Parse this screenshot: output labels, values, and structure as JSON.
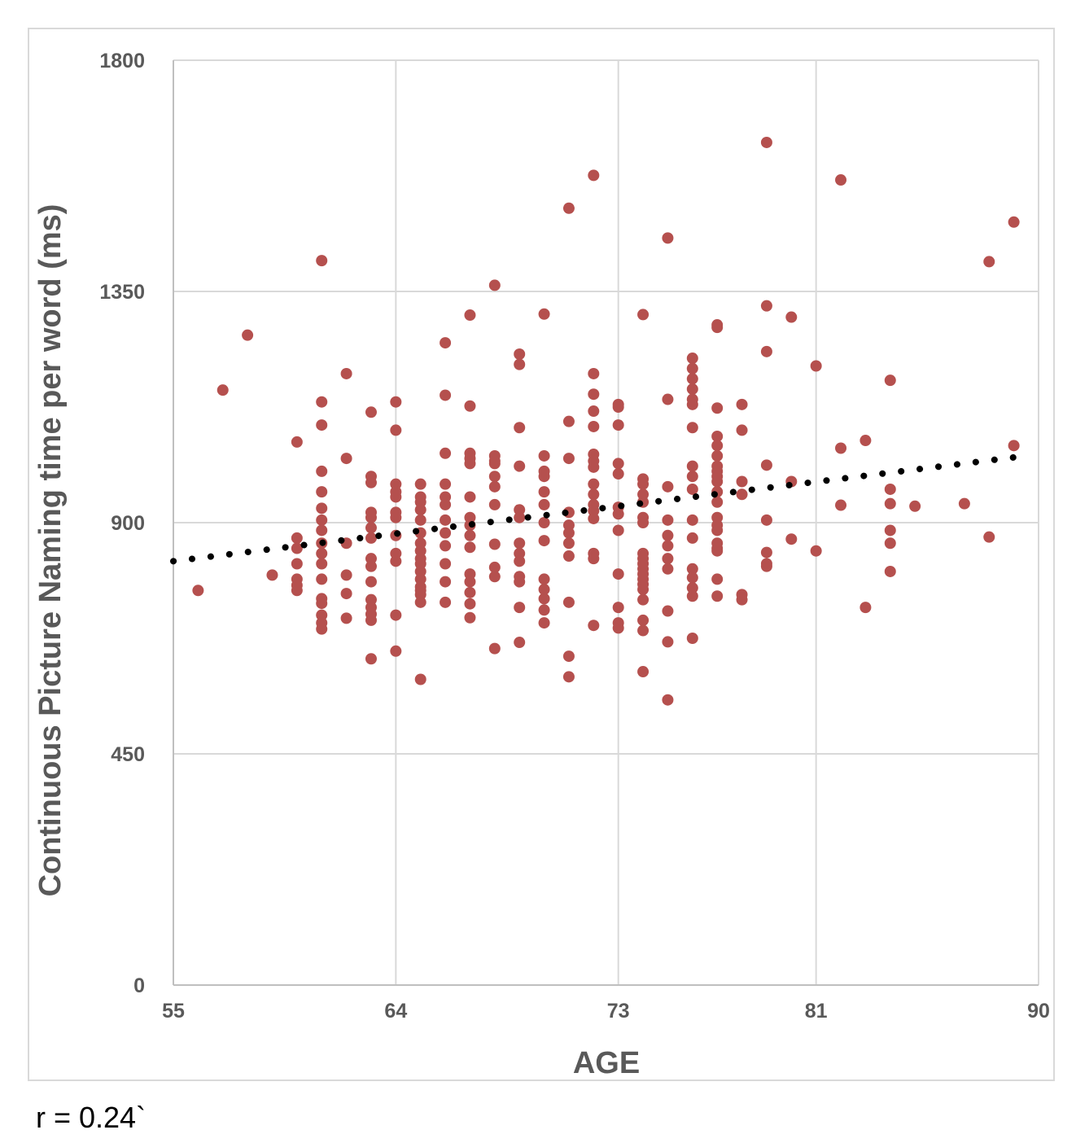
{
  "chart_data": {
    "type": "scatter",
    "title": "",
    "xlabel": "AGE",
    "ylabel": "Continuous Picture Naming time per word (ms)",
    "xlim": [
      55,
      90
    ],
    "ylim": [
      0,
      1800
    ],
    "x_ticks": [
      55,
      64,
      73,
      81,
      90
    ],
    "y_ticks": [
      0,
      450,
      900,
      1350,
      1800
    ],
    "x_tick_labels": [
      "55",
      "64",
      "73",
      "81",
      "90"
    ],
    "y_tick_labels": [
      "0",
      "450",
      "900",
      "1350",
      "1800"
    ],
    "grid": true,
    "legend": "none",
    "point_color": "#b5504e",
    "trendline": {
      "style": "dotted",
      "color": "#000000",
      "start": [
        55,
        825
      ],
      "end": [
        89.5,
        1030
      ]
    },
    "points": [
      [
        56,
        768
      ],
      [
        57,
        1158
      ],
      [
        58,
        1265
      ],
      [
        59,
        798
      ],
      [
        60,
        1057
      ],
      [
        60,
        870
      ],
      [
        60,
        850
      ],
      [
        60,
        820
      ],
      [
        60,
        790
      ],
      [
        60,
        778
      ],
      [
        60,
        768
      ],
      [
        61,
        1410
      ],
      [
        61,
        1135
      ],
      [
        61,
        1090
      ],
      [
        61,
        1000
      ],
      [
        61,
        960
      ],
      [
        61,
        928
      ],
      [
        61,
        905
      ],
      [
        61,
        885
      ],
      [
        61,
        860
      ],
      [
        61,
        840
      ],
      [
        61,
        820
      ],
      [
        61,
        790
      ],
      [
        61,
        752
      ],
      [
        61,
        743
      ],
      [
        61,
        720
      ],
      [
        61,
        705
      ],
      [
        61,
        693
      ],
      [
        62,
        1190
      ],
      [
        62,
        1025
      ],
      [
        62,
        860
      ],
      [
        62,
        798
      ],
      [
        62,
        762
      ],
      [
        62,
        714
      ],
      [
        63,
        1115
      ],
      [
        63,
        990
      ],
      [
        63,
        978
      ],
      [
        63,
        920
      ],
      [
        63,
        910
      ],
      [
        63,
        890
      ],
      [
        63,
        870
      ],
      [
        63,
        830
      ],
      [
        63,
        815
      ],
      [
        63,
        785
      ],
      [
        63,
        750
      ],
      [
        63,
        735
      ],
      [
        63,
        722
      ],
      [
        63,
        710
      ],
      [
        63,
        635
      ],
      [
        64,
        1135
      ],
      [
        64,
        1080
      ],
      [
        64,
        975
      ],
      [
        64,
        960
      ],
      [
        64,
        950
      ],
      [
        64,
        920
      ],
      [
        64,
        910
      ],
      [
        64,
        875
      ],
      [
        64,
        840
      ],
      [
        64,
        825
      ],
      [
        64,
        720
      ],
      [
        64,
        650
      ],
      [
        65,
        975
      ],
      [
        65,
        950
      ],
      [
        65,
        940
      ],
      [
        65,
        925
      ],
      [
        65,
        905
      ],
      [
        65,
        880
      ],
      [
        65,
        860
      ],
      [
        65,
        845
      ],
      [
        65,
        830
      ],
      [
        65,
        820
      ],
      [
        65,
        805
      ],
      [
        65,
        790
      ],
      [
        65,
        775
      ],
      [
        65,
        768
      ],
      [
        65,
        760
      ],
      [
        65,
        745
      ],
      [
        65,
        595
      ],
      [
        66,
        1250
      ],
      [
        66,
        1148
      ],
      [
        66,
        1035
      ],
      [
        66,
        975
      ],
      [
        66,
        950
      ],
      [
        66,
        935
      ],
      [
        66,
        905
      ],
      [
        66,
        880
      ],
      [
        66,
        855
      ],
      [
        66,
        820
      ],
      [
        66,
        785
      ],
      [
        66,
        745
      ],
      [
        67,
        1304
      ],
      [
        67,
        1127
      ],
      [
        67,
        1015
      ],
      [
        67,
        1035
      ],
      [
        67,
        1025
      ],
      [
        67,
        950
      ],
      [
        67,
        910
      ],
      [
        67,
        895
      ],
      [
        67,
        875
      ],
      [
        67,
        852
      ],
      [
        67,
        800
      ],
      [
        67,
        785
      ],
      [
        67,
        764
      ],
      [
        67,
        742
      ],
      [
        67,
        715
      ],
      [
        68,
        1362
      ],
      [
        68,
        1030
      ],
      [
        68,
        1020
      ],
      [
        68,
        1015
      ],
      [
        68,
        990
      ],
      [
        68,
        970
      ],
      [
        68,
        935
      ],
      [
        68,
        858
      ],
      [
        68,
        813
      ],
      [
        68,
        795
      ],
      [
        68,
        655
      ],
      [
        69,
        1228
      ],
      [
        69,
        1208
      ],
      [
        69,
        1085
      ],
      [
        69,
        1010
      ],
      [
        69,
        925
      ],
      [
        69,
        910
      ],
      [
        69,
        860
      ],
      [
        69,
        840
      ],
      [
        69,
        825
      ],
      [
        69,
        795
      ],
      [
        69,
        785
      ],
      [
        69,
        735
      ],
      [
        69,
        667
      ],
      [
        70,
        1306
      ],
      [
        70,
        1030
      ],
      [
        70,
        1000
      ],
      [
        70,
        990
      ],
      [
        70,
        960
      ],
      [
        70,
        935
      ],
      [
        70,
        900
      ],
      [
        70,
        865
      ],
      [
        70,
        790
      ],
      [
        70,
        770
      ],
      [
        70,
        752
      ],
      [
        70,
        730
      ],
      [
        70,
        705
      ],
      [
        71,
        1512
      ],
      [
        71,
        1097
      ],
      [
        71,
        1025
      ],
      [
        71,
        920
      ],
      [
        71,
        895
      ],
      [
        71,
        880
      ],
      [
        71,
        860
      ],
      [
        71,
        835
      ],
      [
        71,
        745
      ],
      [
        71,
        640
      ],
      [
        71,
        600
      ],
      [
        72,
        1576
      ],
      [
        72,
        1190
      ],
      [
        72,
        1150
      ],
      [
        72,
        1117
      ],
      [
        72,
        1087
      ],
      [
        72,
        1033
      ],
      [
        72,
        1020
      ],
      [
        72,
        1008
      ],
      [
        72,
        975
      ],
      [
        72,
        955
      ],
      [
        72,
        935
      ],
      [
        72,
        923
      ],
      [
        72,
        908
      ],
      [
        72,
        840
      ],
      [
        72,
        830
      ],
      [
        72,
        700
      ],
      [
        73,
        1130
      ],
      [
        73,
        1125
      ],
      [
        73,
        1090
      ],
      [
        73,
        1015
      ],
      [
        73,
        995
      ],
      [
        73,
        930
      ],
      [
        73,
        917
      ],
      [
        73,
        885
      ],
      [
        73,
        800
      ],
      [
        73,
        735
      ],
      [
        73,
        705
      ],
      [
        73,
        695
      ],
      [
        74,
        1305
      ],
      [
        74,
        985
      ],
      [
        74,
        975
      ],
      [
        74,
        955
      ],
      [
        74,
        940
      ],
      [
        74,
        910
      ],
      [
        74,
        900
      ],
      [
        74,
        840
      ],
      [
        74,
        830
      ],
      [
        74,
        820
      ],
      [
        74,
        810
      ],
      [
        74,
        800
      ],
      [
        74,
        790
      ],
      [
        74,
        780
      ],
      [
        74,
        770
      ],
      [
        74,
        750
      ],
      [
        74,
        710
      ],
      [
        74,
        690
      ],
      [
        74,
        610
      ],
      [
        75,
        1454
      ],
      [
        75,
        1140
      ],
      [
        75,
        970
      ],
      [
        75,
        905
      ],
      [
        75,
        875
      ],
      [
        75,
        855
      ],
      [
        75,
        830
      ],
      [
        75,
        810
      ],
      [
        75,
        728
      ],
      [
        75,
        668
      ],
      [
        75,
        555
      ],
      [
        76,
        1220
      ],
      [
        76,
        1200
      ],
      [
        76,
        1180
      ],
      [
        76,
        1160
      ],
      [
        76,
        1140
      ],
      [
        76,
        1130
      ],
      [
        76,
        1085
      ],
      [
        76,
        1010
      ],
      [
        76,
        990
      ],
      [
        76,
        965
      ],
      [
        76,
        905
      ],
      [
        76,
        870
      ],
      [
        76,
        810
      ],
      [
        76,
        793
      ],
      [
        76,
        773
      ],
      [
        76,
        757
      ],
      [
        76,
        675
      ],
      [
        77,
        1285
      ],
      [
        77,
        1280
      ],
      [
        77,
        1123
      ],
      [
        77,
        1068
      ],
      [
        77,
        1050
      ],
      [
        77,
        1030
      ],
      [
        77,
        1010
      ],
      [
        77,
        1000
      ],
      [
        77,
        990
      ],
      [
        77,
        980
      ],
      [
        77,
        960
      ],
      [
        77,
        940
      ],
      [
        77,
        910
      ],
      [
        77,
        895
      ],
      [
        77,
        885
      ],
      [
        77,
        860
      ],
      [
        77,
        850
      ],
      [
        77,
        845
      ],
      [
        77,
        790
      ],
      [
        77,
        757
      ],
      [
        78,
        1130
      ],
      [
        78,
        1080
      ],
      [
        78,
        980
      ],
      [
        78,
        955
      ],
      [
        78,
        760
      ],
      [
        78,
        750
      ],
      [
        79,
        1640
      ],
      [
        79,
        1322
      ],
      [
        79,
        1233
      ],
      [
        79,
        1012
      ],
      [
        79,
        905
      ],
      [
        79,
        842
      ],
      [
        79,
        820
      ],
      [
        79,
        815
      ],
      [
        80,
        1300
      ],
      [
        80,
        980
      ],
      [
        80,
        868
      ],
      [
        81,
        1205
      ],
      [
        81,
        845
      ],
      [
        82,
        1567
      ],
      [
        82,
        1045
      ],
      [
        82,
        934
      ],
      [
        83,
        1060
      ],
      [
        83,
        735
      ],
      [
        84,
        1177
      ],
      [
        84,
        965
      ],
      [
        84,
        937
      ],
      [
        84,
        885
      ],
      [
        84,
        860
      ],
      [
        84,
        805
      ],
      [
        85,
        932
      ],
      [
        87,
        937
      ],
      [
        88,
        1408
      ],
      [
        88,
        872
      ],
      [
        89,
        1485
      ],
      [
        89,
        1050
      ]
    ],
    "annotation": "r = 0.24`"
  }
}
